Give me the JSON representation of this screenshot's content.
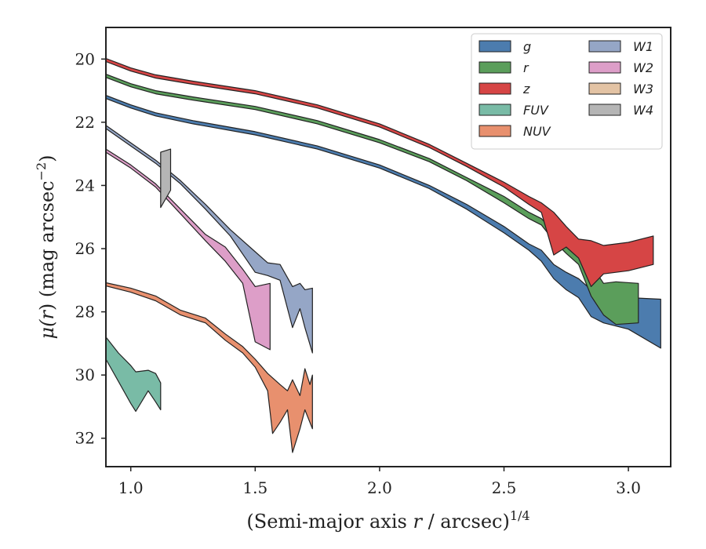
{
  "chart_data": {
    "type": "area",
    "xlabel": "(Semi-major axis r / arcsec)",
    "xlabel_parts": {
      "pre": "(Semi-major axis ",
      "var": "r",
      "post": " / arcsec)",
      "sup": "1/4"
    },
    "ylabel_parts": {
      "mu": "μ(",
      "var": "r",
      "close": ") (mag arcsec",
      "sup": "−2",
      "end": ")"
    },
    "xlim": [
      0.9,
      3.17
    ],
    "ylim": [
      32.9,
      19.0
    ],
    "y_inverted": true,
    "xticks": [
      1.0,
      1.5,
      2.0,
      2.5,
      3.0
    ],
    "xtick_labels": [
      "1.0",
      "1.5",
      "2.0",
      "2.5",
      "3.0"
    ],
    "yticks": [
      20,
      22,
      24,
      26,
      28,
      30,
      32
    ],
    "ytick_labels": [
      "20",
      "22",
      "24",
      "26",
      "28",
      "30",
      "32"
    ],
    "grid": false,
    "legend_position": "top-right",
    "legend_columns": 2,
    "series": [
      {
        "name": "g",
        "color": "#4c7cae",
        "upper": [
          [
            0.9,
            21.15
          ],
          [
            1.0,
            21.45
          ],
          [
            1.1,
            21.7
          ],
          [
            1.25,
            21.95
          ],
          [
            1.5,
            22.3
          ],
          [
            1.75,
            22.75
          ],
          [
            2.0,
            23.35
          ],
          [
            2.2,
            24.0
          ],
          [
            2.35,
            24.6
          ],
          [
            2.5,
            25.3
          ],
          [
            2.6,
            25.85
          ],
          [
            2.65,
            26.05
          ],
          [
            2.7,
            26.5
          ],
          [
            2.75,
            26.75
          ],
          [
            2.8,
            26.95
          ],
          [
            2.85,
            27.3
          ],
          [
            2.9,
            27.5
          ],
          [
            3.0,
            27.55
          ],
          [
            3.13,
            27.6
          ]
        ],
        "lower": [
          [
            0.9,
            21.25
          ],
          [
            1.0,
            21.55
          ],
          [
            1.1,
            21.8
          ],
          [
            1.25,
            22.05
          ],
          [
            1.5,
            22.4
          ],
          [
            1.75,
            22.85
          ],
          [
            2.0,
            23.45
          ],
          [
            2.2,
            24.1
          ],
          [
            2.35,
            24.75
          ],
          [
            2.5,
            25.5
          ],
          [
            2.6,
            26.05
          ],
          [
            2.65,
            26.4
          ],
          [
            2.7,
            26.95
          ],
          [
            2.75,
            27.3
          ],
          [
            2.8,
            27.55
          ],
          [
            2.85,
            28.15
          ],
          [
            2.9,
            28.35
          ],
          [
            3.0,
            28.55
          ],
          [
            3.13,
            29.15
          ]
        ]
      },
      {
        "name": "r",
        "color": "#5b9e5b",
        "upper": [
          [
            0.9,
            20.48
          ],
          [
            1.0,
            20.78
          ],
          [
            1.1,
            21.0
          ],
          [
            1.25,
            21.2
          ],
          [
            1.5,
            21.5
          ],
          [
            1.75,
            21.95
          ],
          [
            2.0,
            22.55
          ],
          [
            2.2,
            23.15
          ],
          [
            2.35,
            23.75
          ],
          [
            2.5,
            24.35
          ],
          [
            2.6,
            24.85
          ],
          [
            2.65,
            25.05
          ],
          [
            2.7,
            25.45
          ],
          [
            2.75,
            25.65
          ],
          [
            2.8,
            25.95
          ],
          [
            2.85,
            26.5
          ],
          [
            2.9,
            27.1
          ],
          [
            2.95,
            27.05
          ],
          [
            3.04,
            27.1
          ]
        ],
        "lower": [
          [
            0.9,
            20.58
          ],
          [
            1.0,
            20.88
          ],
          [
            1.1,
            21.1
          ],
          [
            1.25,
            21.3
          ],
          [
            1.5,
            21.6
          ],
          [
            1.75,
            22.05
          ],
          [
            2.0,
            22.65
          ],
          [
            2.2,
            23.25
          ],
          [
            2.35,
            23.85
          ],
          [
            2.5,
            24.55
          ],
          [
            2.6,
            25.05
          ],
          [
            2.65,
            25.25
          ],
          [
            2.7,
            25.75
          ],
          [
            2.75,
            26.15
          ],
          [
            2.8,
            26.5
          ],
          [
            2.85,
            27.5
          ],
          [
            2.9,
            28.1
          ],
          [
            2.95,
            28.4
          ],
          [
            3.04,
            28.35
          ]
        ]
      },
      {
        "name": "z",
        "color": "#d64545",
        "upper": [
          [
            0.9,
            19.98
          ],
          [
            1.0,
            20.28
          ],
          [
            1.1,
            20.5
          ],
          [
            1.25,
            20.7
          ],
          [
            1.5,
            21.0
          ],
          [
            1.75,
            21.45
          ],
          [
            2.0,
            22.05
          ],
          [
            2.2,
            22.7
          ],
          [
            2.35,
            23.3
          ],
          [
            2.5,
            23.9
          ],
          [
            2.6,
            24.35
          ],
          [
            2.65,
            24.55
          ],
          [
            2.7,
            24.85
          ],
          [
            2.75,
            25.3
          ],
          [
            2.8,
            25.7
          ],
          [
            2.85,
            25.75
          ],
          [
            2.9,
            25.9
          ],
          [
            3.0,
            25.8
          ],
          [
            3.1,
            25.6
          ]
        ],
        "lower": [
          [
            0.9,
            20.08
          ],
          [
            1.0,
            20.38
          ],
          [
            1.1,
            20.6
          ],
          [
            1.25,
            20.8
          ],
          [
            1.5,
            21.1
          ],
          [
            1.75,
            21.55
          ],
          [
            2.0,
            22.15
          ],
          [
            2.2,
            22.8
          ],
          [
            2.35,
            23.4
          ],
          [
            2.5,
            24.05
          ],
          [
            2.6,
            24.6
          ],
          [
            2.65,
            24.85
          ],
          [
            2.7,
            26.2
          ],
          [
            2.75,
            25.95
          ],
          [
            2.8,
            26.3
          ],
          [
            2.85,
            27.2
          ],
          [
            2.9,
            26.8
          ],
          [
            3.0,
            26.7
          ],
          [
            3.1,
            26.5
          ]
        ]
      },
      {
        "name": "FUV",
        "color": "#79bba6",
        "upper": [
          [
            0.9,
            28.8
          ],
          [
            0.95,
            29.3
          ],
          [
            1.0,
            29.7
          ],
          [
            1.02,
            29.9
          ],
          [
            1.07,
            29.85
          ],
          [
            1.1,
            29.95
          ],
          [
            1.12,
            30.25
          ]
        ],
        "lower": [
          [
            0.9,
            29.5
          ],
          [
            0.95,
            30.2
          ],
          [
            1.0,
            30.9
          ],
          [
            1.02,
            31.15
          ],
          [
            1.07,
            30.5
          ],
          [
            1.1,
            30.85
          ],
          [
            1.12,
            31.1
          ]
        ]
      },
      {
        "name": "NUV",
        "color": "#e8906e",
        "upper": [
          [
            0.9,
            27.08
          ],
          [
            1.0,
            27.25
          ],
          [
            1.1,
            27.5
          ],
          [
            1.2,
            27.95
          ],
          [
            1.3,
            28.2
          ],
          [
            1.38,
            28.7
          ],
          [
            1.45,
            29.1
          ],
          [
            1.5,
            29.5
          ],
          [
            1.55,
            29.95
          ],
          [
            1.6,
            30.3
          ],
          [
            1.63,
            30.5
          ],
          [
            1.65,
            30.15
          ],
          [
            1.68,
            30.65
          ],
          [
            1.7,
            29.8
          ],
          [
            1.72,
            30.3
          ],
          [
            1.73,
            30.0
          ]
        ],
        "lower": [
          [
            0.9,
            27.18
          ],
          [
            1.0,
            27.38
          ],
          [
            1.1,
            27.65
          ],
          [
            1.2,
            28.1
          ],
          [
            1.3,
            28.35
          ],
          [
            1.38,
            28.9
          ],
          [
            1.45,
            29.3
          ],
          [
            1.5,
            29.75
          ],
          [
            1.55,
            30.5
          ],
          [
            1.57,
            31.85
          ],
          [
            1.6,
            31.5
          ],
          [
            1.63,
            31.1
          ],
          [
            1.65,
            32.45
          ],
          [
            1.68,
            31.7
          ],
          [
            1.7,
            31.1
          ],
          [
            1.73,
            31.7
          ]
        ]
      },
      {
        "name": "W1",
        "color": "#95a6c6",
        "upper": [
          [
            0.9,
            22.1
          ],
          [
            1.0,
            22.65
          ],
          [
            1.1,
            23.2
          ],
          [
            1.2,
            23.85
          ],
          [
            1.3,
            24.6
          ],
          [
            1.4,
            25.4
          ],
          [
            1.5,
            26.1
          ],
          [
            1.55,
            26.45
          ],
          [
            1.6,
            26.5
          ],
          [
            1.65,
            27.2
          ],
          [
            1.68,
            27.1
          ],
          [
            1.7,
            27.3
          ],
          [
            1.73,
            27.25
          ]
        ],
        "lower": [
          [
            0.9,
            22.2
          ],
          [
            1.0,
            22.75
          ],
          [
            1.1,
            23.3
          ],
          [
            1.2,
            23.95
          ],
          [
            1.3,
            24.75
          ],
          [
            1.4,
            25.6
          ],
          [
            1.5,
            26.75
          ],
          [
            1.55,
            26.85
          ],
          [
            1.6,
            27.0
          ],
          [
            1.65,
            28.5
          ],
          [
            1.68,
            27.9
          ],
          [
            1.7,
            28.5
          ],
          [
            1.73,
            29.3
          ]
        ]
      },
      {
        "name": "W2",
        "color": "#dd9ec8",
        "upper": [
          [
            0.9,
            22.85
          ],
          [
            1.0,
            23.35
          ],
          [
            1.1,
            23.95
          ],
          [
            1.2,
            24.75
          ],
          [
            1.3,
            25.55
          ],
          [
            1.38,
            25.95
          ],
          [
            1.45,
            26.65
          ],
          [
            1.5,
            27.2
          ],
          [
            1.56,
            27.1
          ]
        ],
        "lower": [
          [
            0.9,
            22.95
          ],
          [
            1.0,
            23.45
          ],
          [
            1.1,
            24.05
          ],
          [
            1.2,
            24.9
          ],
          [
            1.3,
            25.75
          ],
          [
            1.38,
            26.4
          ],
          [
            1.45,
            27.1
          ],
          [
            1.5,
            28.95
          ],
          [
            1.56,
            29.2
          ]
        ]
      },
      {
        "name": "W3",
        "color": "#e3c3a4",
        "upper": [],
        "lower": []
      },
      {
        "name": "W4",
        "color": "#b5b5b5",
        "upper": [
          [
            1.12,
            22.95
          ],
          [
            1.16,
            22.85
          ]
        ],
        "lower": [
          [
            1.12,
            24.7
          ],
          [
            1.16,
            24.15
          ]
        ]
      }
    ]
  }
}
